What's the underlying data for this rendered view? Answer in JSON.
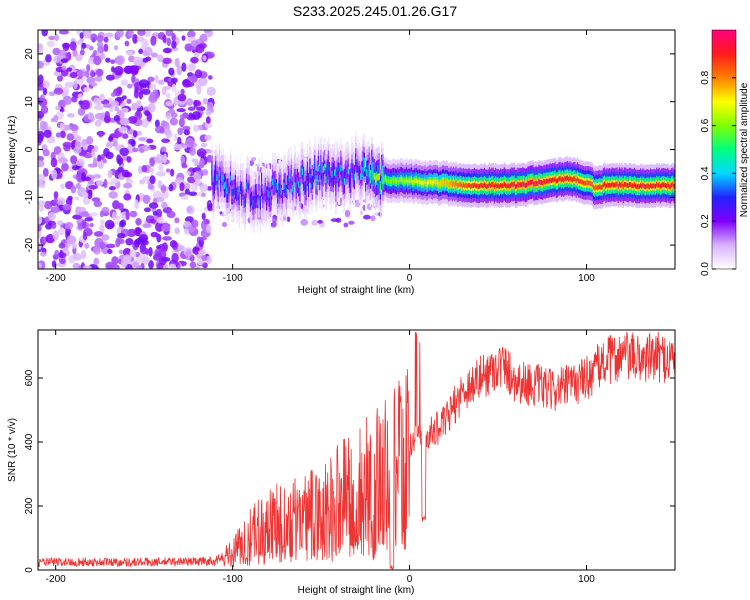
{
  "title": "S233.2025.245.01.26.G17",
  "chart_data": [
    {
      "type": "heatmap",
      "xlabel": "Height of straight line (km)",
      "ylabel": "Frequency (Hz)",
      "xlim": [
        -210,
        150
      ],
      "ylim": [
        -25,
        25
      ],
      "xticks": [
        -200,
        -100,
        0,
        100
      ],
      "yticks": [
        -20,
        -10,
        0,
        10,
        20
      ],
      "colorbar": {
        "label": "Normalized spectral amplitude",
        "range": [
          0,
          1
        ],
        "ticks": [
          0.0,
          0.2,
          0.4,
          0.6,
          0.8
        ]
      },
      "noise_region": {
        "x_range": [
          -210,
          -112
        ],
        "f_range": [
          -25,
          25
        ],
        "amplitude": [
          0.15,
          0.35
        ]
      },
      "ridge": [
        {
          "x": -110,
          "f": -6.5,
          "amplitude": 0.35
        },
        {
          "x": -100,
          "f": -8.0,
          "amplitude": 0.3
        },
        {
          "x": -90,
          "f": -9.5,
          "amplitude": 0.3
        },
        {
          "x": -80,
          "f": -9.0,
          "amplitude": 0.3
        },
        {
          "x": -70,
          "f": -8.0,
          "amplitude": 0.32
        },
        {
          "x": -60,
          "f": -6.5,
          "amplitude": 0.35
        },
        {
          "x": -50,
          "f": -5.0,
          "amplitude": 0.38
        },
        {
          "x": -40,
          "f": -5.5,
          "amplitude": 0.35
        },
        {
          "x": -30,
          "f": -4.0,
          "amplitude": 0.3
        },
        {
          "x": -20,
          "f": -6.0,
          "amplitude": 0.55
        },
        {
          "x": -10,
          "f": -6.5,
          "amplitude": 0.6
        },
        {
          "x": 0,
          "f": -6.5,
          "amplitude": 0.65
        },
        {
          "x": 10,
          "f": -7.0,
          "amplitude": 0.7
        },
        {
          "x": 20,
          "f": -7.0,
          "amplitude": 0.75
        },
        {
          "x": 30,
          "f": -7.5,
          "amplitude": 0.85
        },
        {
          "x": 40,
          "f": -7.5,
          "amplitude": 0.9
        },
        {
          "x": 50,
          "f": -7.5,
          "amplitude": 0.9
        },
        {
          "x": 60,
          "f": -7.5,
          "amplitude": 0.92
        },
        {
          "x": 70,
          "f": -7.0,
          "amplitude": 0.95
        },
        {
          "x": 80,
          "f": -6.5,
          "amplitude": 0.9
        },
        {
          "x": 90,
          "f": -6.0,
          "amplitude": 0.9
        },
        {
          "x": 100,
          "f": -7.0,
          "amplitude": 0.85
        },
        {
          "x": 105,
          "f": -8.0,
          "amplitude": 0.85
        },
        {
          "x": 110,
          "f": -7.5,
          "amplitude": 0.9
        },
        {
          "x": 120,
          "f": -7.5,
          "amplitude": 0.9
        },
        {
          "x": 130,
          "f": -7.5,
          "amplitude": 0.9
        },
        {
          "x": 140,
          "f": -7.5,
          "amplitude": 0.9
        },
        {
          "x": 150,
          "f": -7.5,
          "amplitude": 0.9
        }
      ]
    },
    {
      "type": "line",
      "xlabel": "Height of straight line (km)",
      "ylabel": "SNR (10 * v/v)",
      "xlim": [
        -210,
        150
      ],
      "ylim": [
        0,
        750
      ],
      "xticks": [
        -200,
        -100,
        0,
        100
      ],
      "yticks": [
        0,
        200,
        400,
        600
      ],
      "color": "#ee3333",
      "trend": [
        {
          "x": -210,
          "y": 25
        },
        {
          "x": -150,
          "y": 25
        },
        {
          "x": -110,
          "y": 28
        },
        {
          "x": -100,
          "y": 60
        },
        {
          "x": -90,
          "y": 110
        },
        {
          "x": -80,
          "y": 150
        },
        {
          "x": -60,
          "y": 170
        },
        {
          "x": -50,
          "y": 190
        },
        {
          "x": -40,
          "y": 230
        },
        {
          "x": -30,
          "y": 260
        },
        {
          "x": -20,
          "y": 290
        },
        {
          "x": -10,
          "y": 320
        },
        {
          "x": 0,
          "y": 380
        },
        {
          "x": 5,
          "y": 410
        },
        {
          "x": 10,
          "y": 420
        },
        {
          "x": 20,
          "y": 460
        },
        {
          "x": 30,
          "y": 560
        },
        {
          "x": 40,
          "y": 600
        },
        {
          "x": 50,
          "y": 640
        },
        {
          "x": 55,
          "y": 630
        },
        {
          "x": 60,
          "y": 590
        },
        {
          "x": 70,
          "y": 580
        },
        {
          "x": 80,
          "y": 560
        },
        {
          "x": 90,
          "y": 575
        },
        {
          "x": 100,
          "y": 600
        },
        {
          "x": 110,
          "y": 650
        },
        {
          "x": 120,
          "y": 670
        },
        {
          "x": 130,
          "y": 660
        },
        {
          "x": 140,
          "y": 665
        },
        {
          "x": 150,
          "y": 660
        }
      ],
      "dips": [
        {
          "x": -10,
          "y": 0
        },
        {
          "x": 8,
          "y": 150
        }
      ]
    }
  ]
}
